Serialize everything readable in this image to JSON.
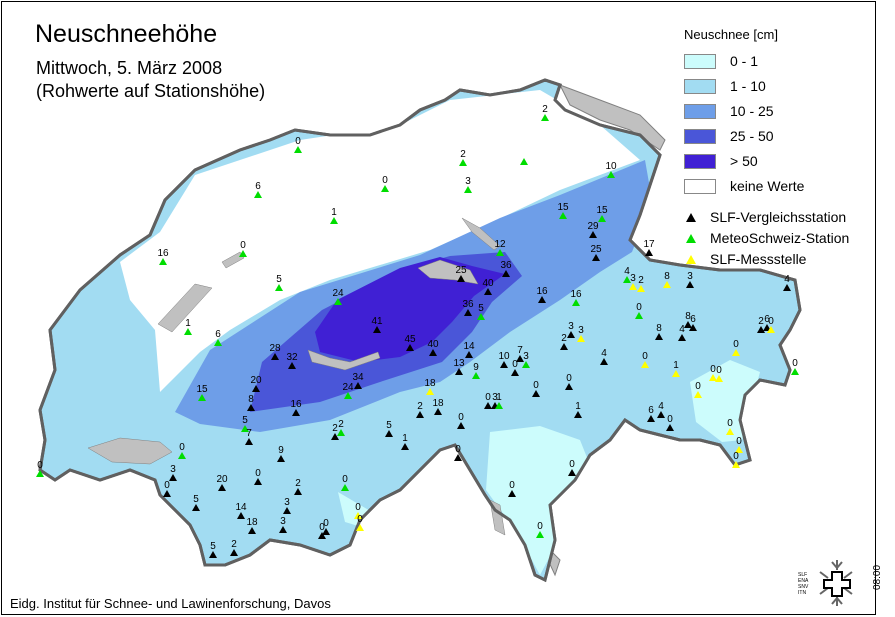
{
  "header": {
    "title": "Neuschneehöhe",
    "subtitle": "Mittwoch, 5. März 2008",
    "note": "(Rohwerte auf Stationshöhe)"
  },
  "legend": {
    "title": "Neuschnee [cm]",
    "classes": [
      {
        "label": "0 - 1",
        "color": "#ccfcfc"
      },
      {
        "label": "1 - 10",
        "color": "#a2dcf2"
      },
      {
        "label": "10 - 25",
        "color": "#6e9ee8"
      },
      {
        "label": "25 - 50",
        "color": "#4a56d8"
      },
      {
        "label": "> 50",
        "color": "#4020d4"
      },
      {
        "label": "keine Werte",
        "color": "#ffffff"
      }
    ],
    "station_types": [
      {
        "label": "SLF-Vergleichsstation",
        "color": "#000000"
      },
      {
        "label": "MeteoSchweiz-Station",
        "color": "#00dd00"
      },
      {
        "label": "SLF-Messstelle",
        "color": "#ffff00"
      }
    ]
  },
  "colors": {
    "lake": "#c0c0c0",
    "border": "#606060"
  },
  "stations": [
    {
      "v": "0",
      "t": "g"
    },
    {
      "v": "6",
      "t": "g"
    },
    {
      "v": "16",
      "t": "g"
    },
    {
      "v": "1",
      "t": "g"
    },
    {
      "v": "6",
      "t": "g"
    },
    {
      "v": "0",
      "t": "g"
    },
    {
      "v": "5",
      "t": "g"
    },
    {
      "v": "1",
      "t": "g"
    },
    {
      "v": "0",
      "t": "g"
    },
    {
      "v": "2",
      "t": "g"
    },
    {
      "v": "3",
      "t": "g"
    },
    {
      "v": "",
      "t": "g"
    },
    {
      "v": "2",
      "t": "g"
    },
    {
      "v": "10",
      "t": "g"
    },
    {
      "v": "15",
      "t": "g"
    },
    {
      "v": "15",
      "t": "g"
    },
    {
      "v": "29",
      "t": "b"
    },
    {
      "v": "25",
      "t": "b"
    },
    {
      "v": "12",
      "t": "g"
    },
    {
      "v": "25",
      "t": "b"
    },
    {
      "v": "36",
      "t": "b"
    },
    {
      "v": "40",
      "t": "b"
    },
    {
      "v": "16",
      "t": "b"
    },
    {
      "v": "16",
      "t": "g"
    },
    {
      "v": "24",
      "t": "g"
    },
    {
      "v": "41",
      "t": "b"
    },
    {
      "v": "45",
      "t": "b"
    },
    {
      "v": "40",
      "t": "b"
    },
    {
      "v": "36",
      "t": "b"
    },
    {
      "v": "5",
      "t": "g"
    },
    {
      "v": "28",
      "t": "b"
    },
    {
      "v": "32",
      "t": "b"
    },
    {
      "v": "20",
      "t": "b"
    },
    {
      "v": "8",
      "t": "b"
    },
    {
      "v": "15",
      "t": "g"
    },
    {
      "v": "16",
      "t": "b"
    },
    {
      "v": "34",
      "t": "b"
    },
    {
      "v": "24",
      "t": "g"
    },
    {
      "v": "18",
      "t": "y"
    },
    {
      "v": "18",
      "t": "b"
    },
    {
      "v": "2",
      "t": "b"
    },
    {
      "v": "14",
      "t": "b"
    },
    {
      "v": "13",
      "t": "b"
    },
    {
      "v": "9",
      "t": "g"
    },
    {
      "v": "10",
      "t": "b"
    },
    {
      "v": "0",
      "t": "b"
    },
    {
      "v": "7",
      "t": "b"
    },
    {
      "v": "3",
      "t": "g"
    },
    {
      "v": "2",
      "t": "b"
    },
    {
      "v": "3",
      "t": "b"
    },
    {
      "v": "3",
      "t": "y"
    },
    {
      "v": "0",
      "t": "g"
    },
    {
      "v": "17",
      "t": "b"
    },
    {
      "v": "4",
      "t": "g"
    },
    {
      "v": "3",
      "t": "y"
    },
    {
      "v": "2",
      "t": "y"
    },
    {
      "v": "8",
      "t": "y"
    },
    {
      "v": "3",
      "t": "b"
    },
    {
      "v": "4",
      "t": "b"
    },
    {
      "v": "8",
      "t": "b"
    },
    {
      "v": "4",
      "t": "b"
    },
    {
      "v": "8",
      "t": "b"
    },
    {
      "v": "6",
      "t": "b"
    },
    {
      "v": "2",
      "t": "b"
    },
    {
      "v": "6",
      "t": "b"
    },
    {
      "v": "0",
      "t": "y"
    },
    {
      "v": "0",
      "t": "y"
    },
    {
      "v": "1",
      "t": "y"
    },
    {
      "v": "0",
      "t": "y"
    },
    {
      "v": "4",
      "t": "b"
    },
    {
      "v": "0",
      "t": "b"
    },
    {
      "v": "0",
      "t": "b"
    },
    {
      "v": "0",
      "t": "b"
    },
    {
      "v": "3",
      "t": "b"
    },
    {
      "v": "1",
      "t": "g"
    },
    {
      "v": "0",
      "t": "y"
    },
    {
      "v": "0",
      "t": "y"
    },
    {
      "v": "0",
      "t": "y"
    },
    {
      "v": "1",
      "t": "b"
    },
    {
      "v": "6",
      "t": "b"
    },
    {
      "v": "4",
      "t": "b"
    },
    {
      "v": "0",
      "t": "b"
    },
    {
      "v": "0",
      "t": "y"
    },
    {
      "v": "0",
      "t": "y"
    },
    {
      "v": "0",
      "t": "y"
    },
    {
      "v": "0",
      "t": "b"
    },
    {
      "v": "0",
      "t": "b"
    },
    {
      "v": "0",
      "t": "b"
    },
    {
      "v": "0",
      "t": "b"
    },
    {
      "v": "0",
      "t": "g"
    },
    {
      "v": "5",
      "t": "b"
    },
    {
      "v": "1",
      "t": "b"
    },
    {
      "v": "2",
      "t": "b"
    },
    {
      "v": "2",
      "t": "g"
    },
    {
      "v": "5",
      "t": "g"
    },
    {
      "v": "7",
      "t": "b"
    },
    {
      "v": "9",
      "t": "b"
    },
    {
      "v": "0",
      "t": "g"
    },
    {
      "v": "3",
      "t": "b"
    },
    {
      "v": "0",
      "t": "b"
    },
    {
      "v": "20",
      "t": "b"
    },
    {
      "v": "0",
      "t": "b"
    },
    {
      "v": "5",
      "t": "b"
    },
    {
      "v": "14",
      "t": "b"
    },
    {
      "v": "18",
      "t": "b"
    },
    {
      "v": "3",
      "t": "b"
    },
    {
      "v": "2",
      "t": "b"
    },
    {
      "v": "3",
      "t": "b"
    },
    {
      "v": "0",
      "t": "g"
    },
    {
      "v": "0",
      "t": "b"
    },
    {
      "v": "0",
      "t": "b"
    },
    {
      "v": "0",
      "t": "y"
    },
    {
      "v": "0",
      "t": "y"
    },
    {
      "v": "5",
      "t": "b"
    },
    {
      "v": "2",
      "t": "b"
    },
    {
      "v": "0",
      "t": "g"
    },
    {
      "v": "0",
      "t": "g"
    }
  ],
  "footer": {
    "institute": "Eidg. Institut für Schnee- und Lawinenforschung, Davos",
    "time": "08:00",
    "logo_text": [
      "SLF",
      "ENA",
      "SNV",
      "ITN"
    ]
  }
}
